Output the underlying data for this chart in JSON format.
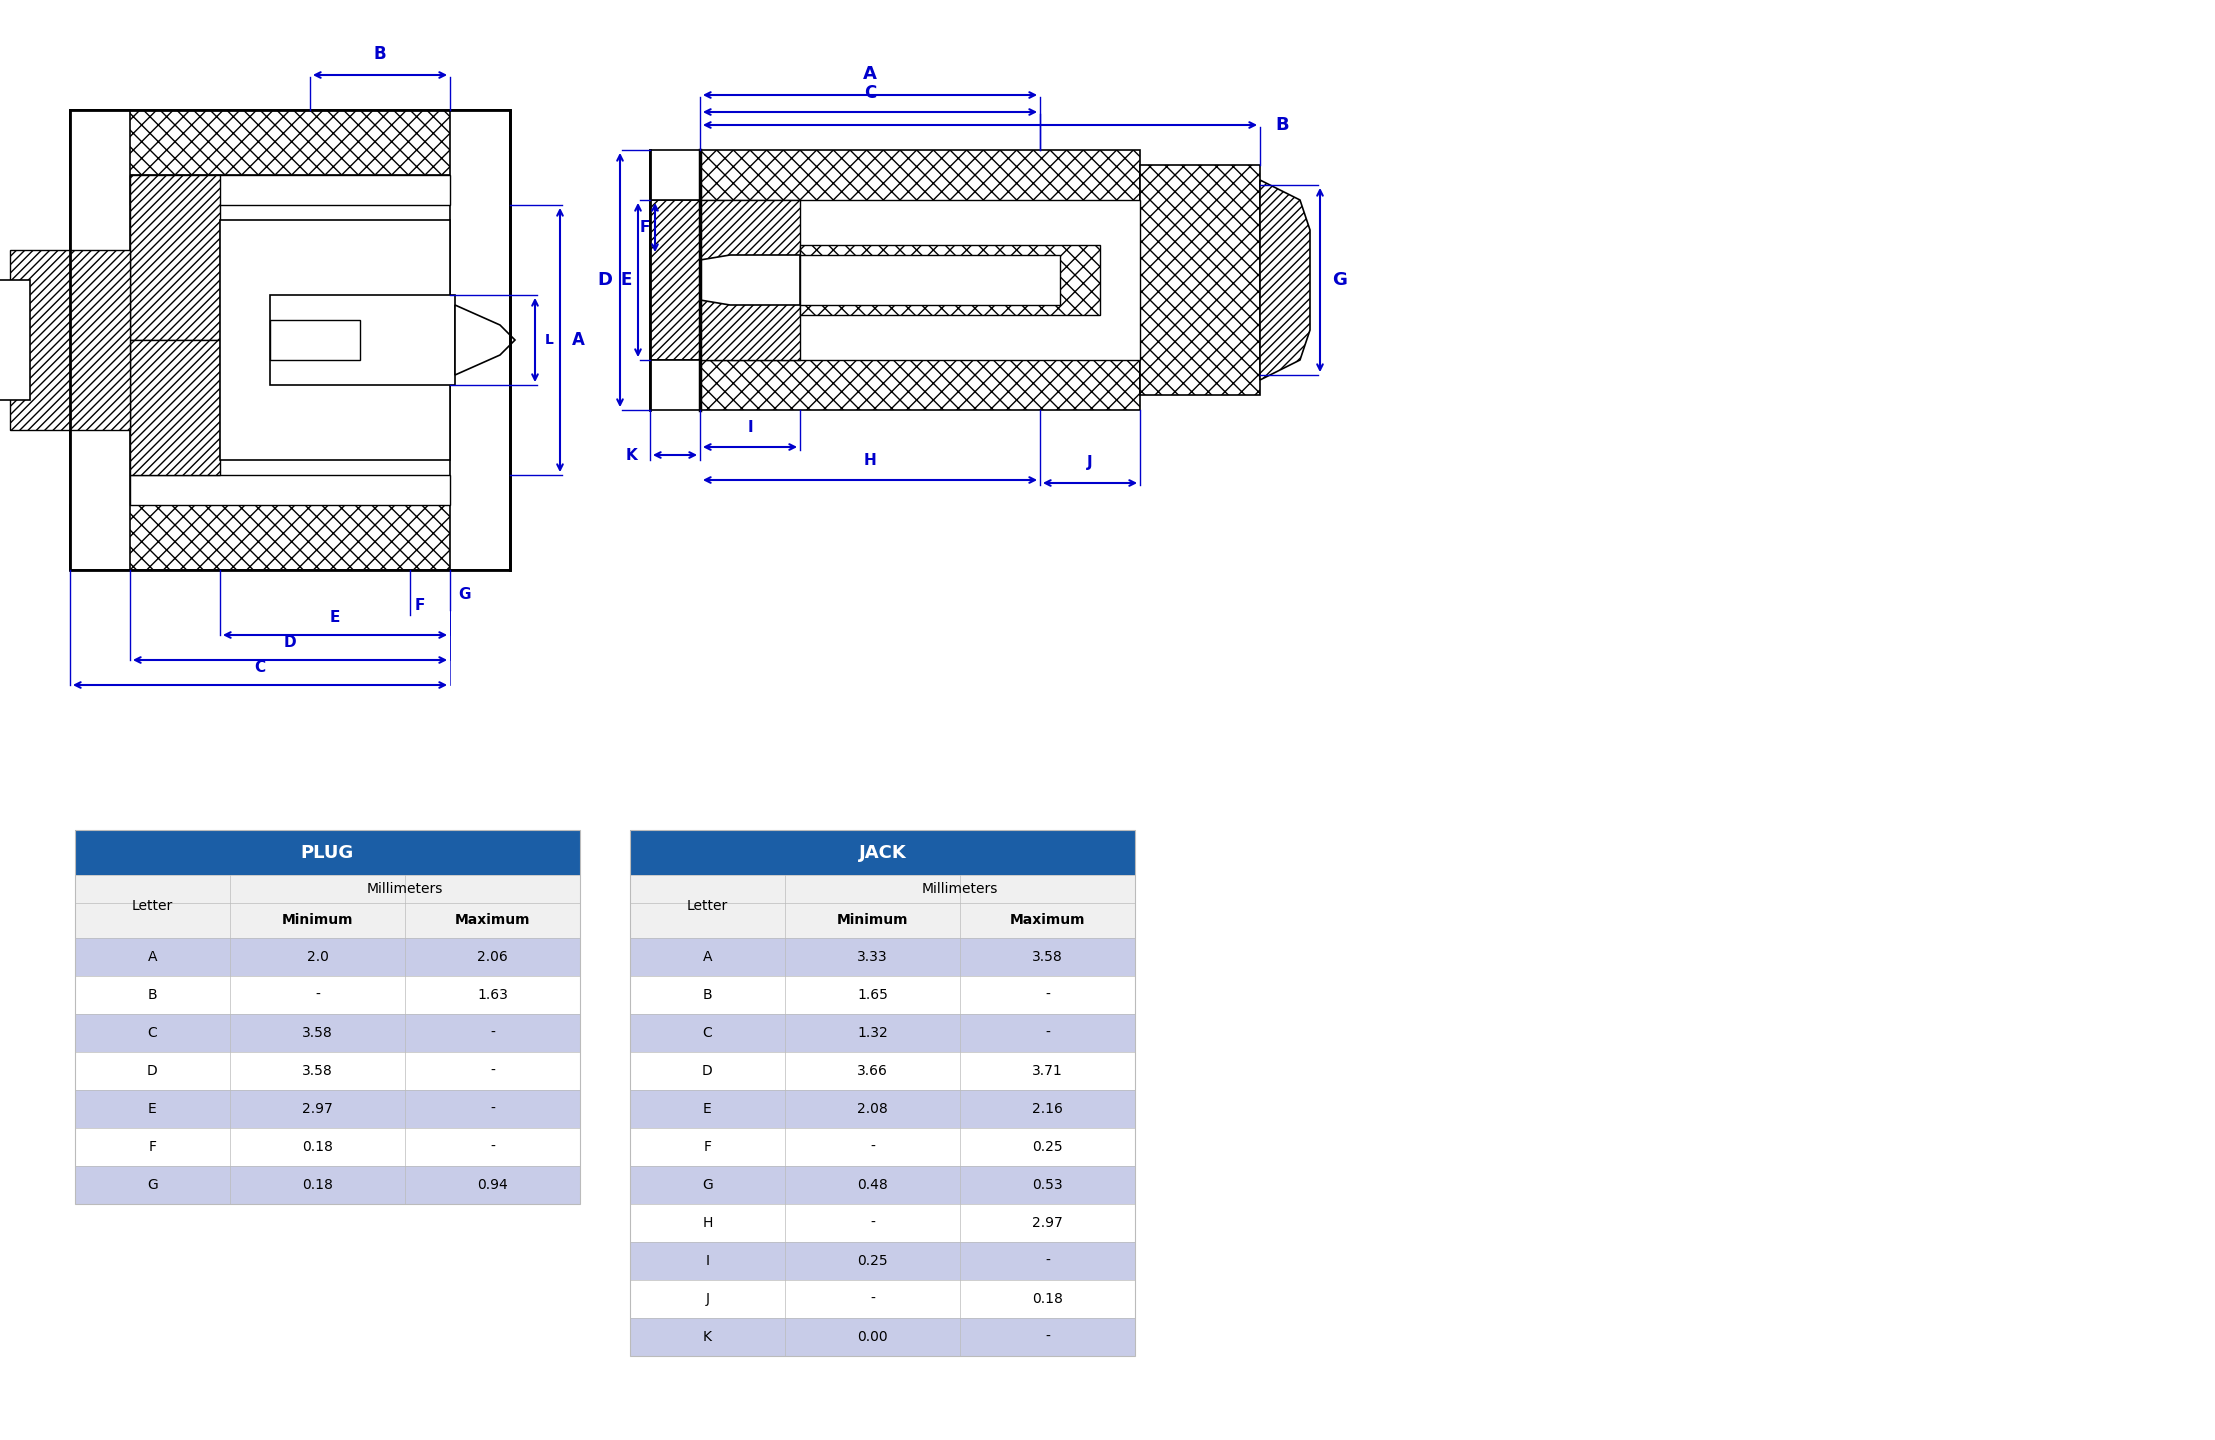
{
  "plug_table": {
    "title": "PLUG",
    "rows": [
      [
        "A",
        "2.0",
        "2.06"
      ],
      [
        "B",
        "-",
        "1.63"
      ],
      [
        "C",
        "3.58",
        "-"
      ],
      [
        "D",
        "3.58",
        "-"
      ],
      [
        "E",
        "2.97",
        "-"
      ],
      [
        "F",
        "0.18",
        "-"
      ],
      [
        "G",
        "0.18",
        "0.94"
      ]
    ]
  },
  "jack_table": {
    "title": "JACK",
    "rows": [
      [
        "A",
        "3.33",
        "3.58"
      ],
      [
        "B",
        "1.65",
        "-"
      ],
      [
        "C",
        "1.32",
        "-"
      ],
      [
        "D",
        "3.66",
        "3.71"
      ],
      [
        "E",
        "2.08",
        "2.16"
      ],
      [
        "F",
        "-",
        "0.25"
      ],
      [
        "G",
        "0.48",
        "0.53"
      ],
      [
        "H",
        "-",
        "2.97"
      ],
      [
        "I",
        "0.25",
        "-"
      ],
      [
        "J",
        "-",
        "0.18"
      ],
      [
        "K",
        "0.00",
        "-"
      ]
    ]
  },
  "colors": {
    "header_bg": "#1B5EA6",
    "header_fg": "#FFFFFF",
    "row_even_bg": "#FFFFFF",
    "row_odd_bg": "#C8CCE8",
    "subheader_bg": "#F0F0F0",
    "line_color": "#0000CC"
  }
}
